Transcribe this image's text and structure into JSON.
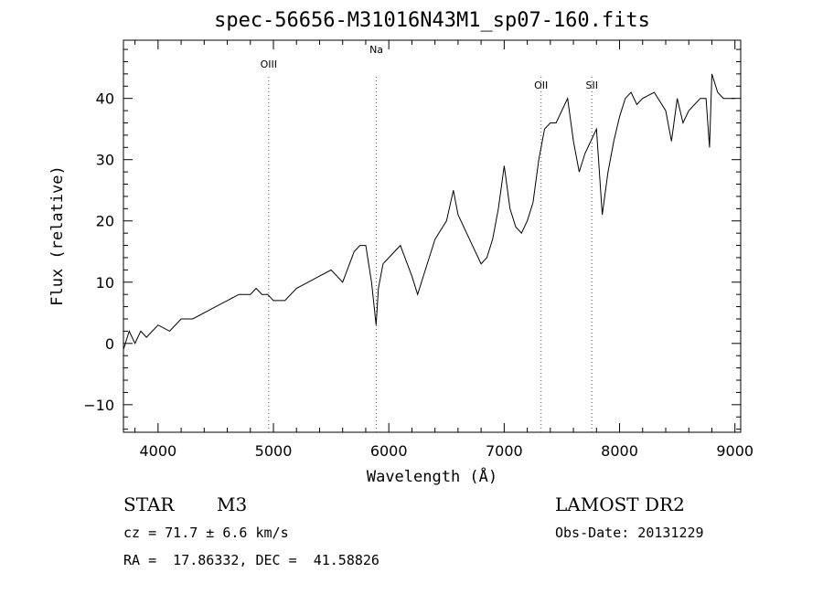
{
  "chart_data": {
    "type": "line",
    "title": "spec-56656-M31016N43M1_sp07-160.fits",
    "xlabel": "Wavelength (Å)",
    "ylabel": "Flux (relative)",
    "xlim": [
      3700,
      9050
    ],
    "ylim": [
      -14.5,
      49.5
    ],
    "xticks": [
      4000,
      5000,
      6000,
      7000,
      8000,
      9000
    ],
    "yticks": [
      -10,
      0,
      10,
      20,
      30,
      40
    ],
    "grid": false,
    "line_color": "#000000",
    "marker_color": "#555555",
    "series": [
      {
        "x": [
          3700,
          3750,
          3800,
          3850,
          3900,
          3950,
          4000,
          4100,
          4200,
          4300,
          4400,
          4500,
          4600,
          4700,
          4800,
          4850,
          4900,
          4950,
          5000,
          5100,
          5200,
          5300,
          5400,
          5500,
          5600,
          5700,
          5750,
          5800,
          5850,
          5890,
          5910,
          5950,
          6000,
          6100,
          6200,
          6250,
          6300,
          6400,
          6500,
          6560,
          6600,
          6700,
          6800,
          6850,
          6900,
          6950,
          7000,
          7050,
          7100,
          7150,
          7200,
          7250,
          7300,
          7350,
          7400,
          7450,
          7500,
          7550,
          7600,
          7650,
          7700,
          7750,
          7800,
          7850,
          7900,
          7950,
          8000,
          8050,
          8100,
          8150,
          8200,
          8300,
          8400,
          8450,
          8500,
          8550,
          8600,
          8650,
          8700,
          8750,
          8780,
          8800,
          8850,
          8900,
          8950,
          9000
        ],
        "y": [
          -1,
          2,
          0,
          2,
          1,
          2,
          3,
          2,
          4,
          4,
          5,
          6,
          7,
          8,
          8,
          9,
          8,
          8,
          7,
          7,
          9,
          10,
          11,
          12,
          10,
          15,
          16,
          16,
          10,
          3,
          9,
          13,
          14,
          16,
          11,
          8,
          11,
          17,
          20,
          25,
          21,
          17,
          13,
          14,
          17,
          22,
          29,
          22,
          19,
          18,
          20,
          23,
          30,
          35,
          36,
          36,
          38,
          40,
          33,
          28,
          31,
          33,
          35,
          21,
          28,
          33,
          37,
          40,
          41,
          39,
          40,
          41,
          38,
          33,
          40,
          36,
          38,
          39,
          40,
          40,
          32,
          44,
          41,
          40,
          40,
          40
        ]
      }
    ],
    "markers": [
      {
        "label": "OIII",
        "x": 4959
      },
      {
        "label": "Na",
        "x": 5892
      },
      {
        "label": "OII",
        "x": 7320
      },
      {
        "label": "SII",
        "x": 7760
      }
    ]
  },
  "info": {
    "object_class": "STAR",
    "subclass": "M3",
    "survey": "LAMOST DR2",
    "cz": "cz = 71.7 ± 6.6 km/s",
    "obs_date": "Obs-Date: 20131229",
    "coords": "RA =  17.86332, DEC =  41.58826"
  }
}
